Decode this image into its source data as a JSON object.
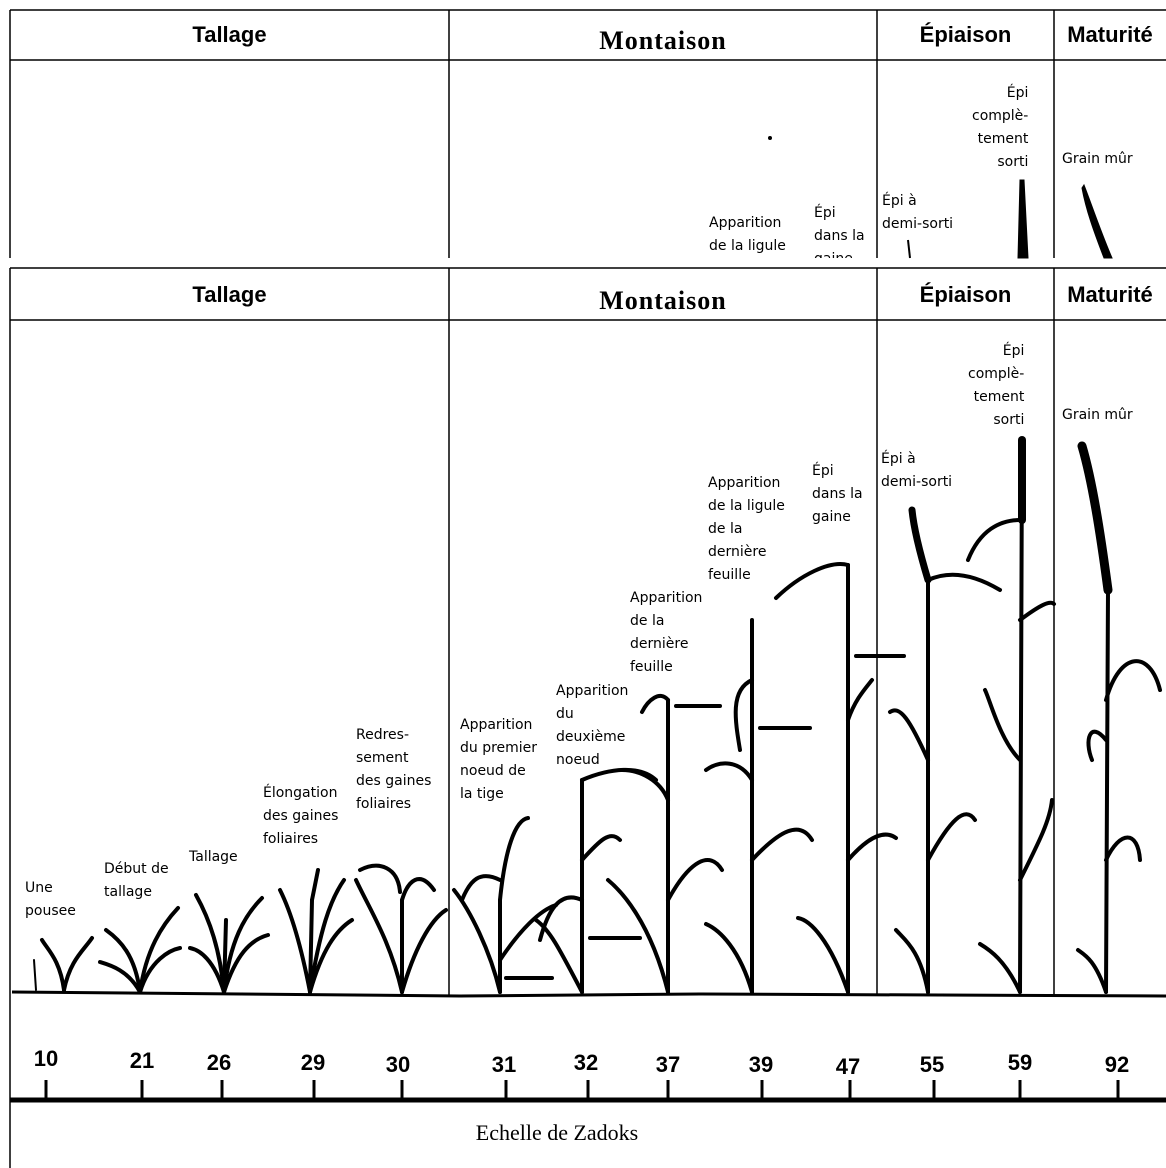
{
  "top_strip": {
    "phases": [
      "Tallage",
      "Montaison",
      "Épiaison",
      "Maturité"
    ],
    "labels": {
      "epi_complet": "Épi\ncomplè-\ntement\nsorti",
      "grain_mur": "Grain mûr",
      "epi_demi": "Épi à\ndemi-sorti",
      "apparition_ligule": "Apparition\nde la ligule",
      "epi_gaine": "Épi\ndans la\ngaine"
    }
  },
  "main": {
    "phases": [
      "Tallage",
      "Montaison",
      "Épiaison",
      "Maturité"
    ],
    "stages": [
      {
        "code": "10",
        "label": "Une\npousee"
      },
      {
        "code": "21",
        "label": "Début de\ntallage"
      },
      {
        "code": "26",
        "label": "Tallage"
      },
      {
        "code": "29",
        "label": "Élongation\ndes gaines\nfoliaires"
      },
      {
        "code": "30",
        "label": "Redres-\nsement\ndes gaines\nfoliaires"
      },
      {
        "code": "31",
        "label": "Apparition\ndu premier\nnoeud de\nla tige"
      },
      {
        "code": "32",
        "label": "Apparition\ndu\ndeuxième\nnoeud"
      },
      {
        "code": "37",
        "label": "Apparition\nde la\ndernière\nfeuille"
      },
      {
        "code": "39",
        "label": "Apparition\nde la ligule\nde la\ndernière\nfeuille"
      },
      {
        "code": "47",
        "label": "Épi\ndans la\ngaine"
      },
      {
        "code": "55",
        "label": "Épi à\ndemi-sorti"
      },
      {
        "code": "59",
        "label": "Épi\ncomplè-\ntement\nsorti"
      },
      {
        "code": "92",
        "label": "Grain mûr"
      }
    ],
    "scale_title": "Echelle de Zadoks"
  }
}
